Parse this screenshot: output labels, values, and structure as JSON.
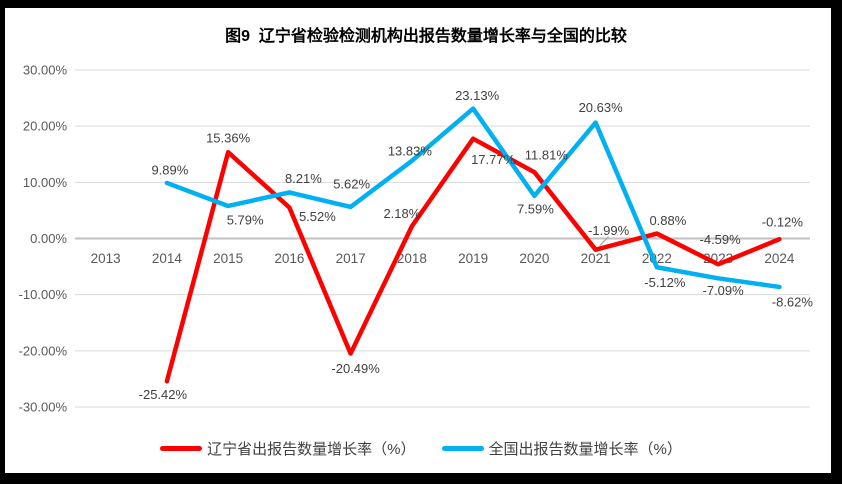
{
  "window": {
    "border_color": "#000000",
    "background_color": "#ffffff"
  },
  "chart_data": {
    "type": "line",
    "title": "图9  辽宁省检验检测机构出报告数量增长率与全国的比较",
    "categories": [
      "2013",
      "2014",
      "2015",
      "2016",
      "2017",
      "2018",
      "2019",
      "2020",
      "2021",
      "2022",
      "2023",
      "2024"
    ],
    "series": [
      {
        "name": "辽宁省出报告数量增长率（%）",
        "color": "#FF0000",
        "values": [
          null,
          -25.42,
          15.36,
          5.52,
          -20.49,
          2.18,
          17.77,
          11.81,
          -1.99,
          0.88,
          -4.59,
          -0.12
        ],
        "labels": [
          null,
          {
            "text": "-25.42%",
            "dx": -4,
            "dy": 13
          },
          {
            "text": "15.36%",
            "dx": 0,
            "dy": -14
          },
          {
            "text": "5.52%",
            "dx": 28,
            "dy": 9
          },
          {
            "text": "-20.49%",
            "dx": 5,
            "dy": 15
          },
          {
            "text": "2.18%",
            "dx": -10,
            "dy": -13
          },
          {
            "text": "17.77%",
            "dx": 20,
            "dy": 21
          },
          {
            "text": "11.81%",
            "dx": 12,
            "dy": -17
          },
          {
            "text": "-1.99%",
            "dx": 13,
            "dy": -19,
            "leader": true
          },
          {
            "text": "0.88%",
            "dx": 11,
            "dy": -13
          },
          {
            "text": "-4.59%",
            "dx": 2,
            "dy": -25
          },
          {
            "text": "-0.12%",
            "dx": 3,
            "dy": -17
          }
        ]
      },
      {
        "name": "全国出报告数量增长率（%）",
        "color": "#00B0F0",
        "values": [
          null,
          9.89,
          5.79,
          8.21,
          5.62,
          13.83,
          23.13,
          7.59,
          20.63,
          -5.12,
          -7.09,
          -8.62
        ],
        "labels": [
          null,
          {
            "text": "9.89%",
            "dx": 3,
            "dy": -13
          },
          {
            "text": "5.79%",
            "dx": 17,
            "dy": 14
          },
          {
            "text": "8.21%",
            "dx": 14,
            "dy": -14
          },
          {
            "text": "5.62%",
            "dx": 1,
            "dy": -23
          },
          {
            "text": "13.83%",
            "dx": -2,
            "dy": -10
          },
          {
            "text": "23.13%",
            "dx": 4,
            "dy": -13
          },
          {
            "text": "7.59%",
            "dx": 1,
            "dy": 13
          },
          {
            "text": "20.63%",
            "dx": 5,
            "dy": -15
          },
          {
            "text": "-5.12%",
            "dx": 8,
            "dy": 15
          },
          {
            "text": "-7.09%",
            "dx": 5,
            "dy": 12
          },
          {
            "text": "-8.62%",
            "dx": 13,
            "dy": 15
          }
        ]
      }
    ],
    "ylim": [
      -30,
      30
    ],
    "ytick_labels": [
      "30.00%",
      "20.00%",
      "10.00%",
      "0.00%",
      "-10.00%",
      "-20.00%",
      "-30.00%"
    ],
    "xlabel": "",
    "ylabel": "",
    "grid": true,
    "legend_position": "bottom",
    "colors": {
      "gridline": "#D9D9D9",
      "zero_axis_line": "#C0C0C0",
      "axis_tick_text": "#595959",
      "data_label_text": "#404040",
      "leader_line": "#A6A6A6"
    }
  }
}
